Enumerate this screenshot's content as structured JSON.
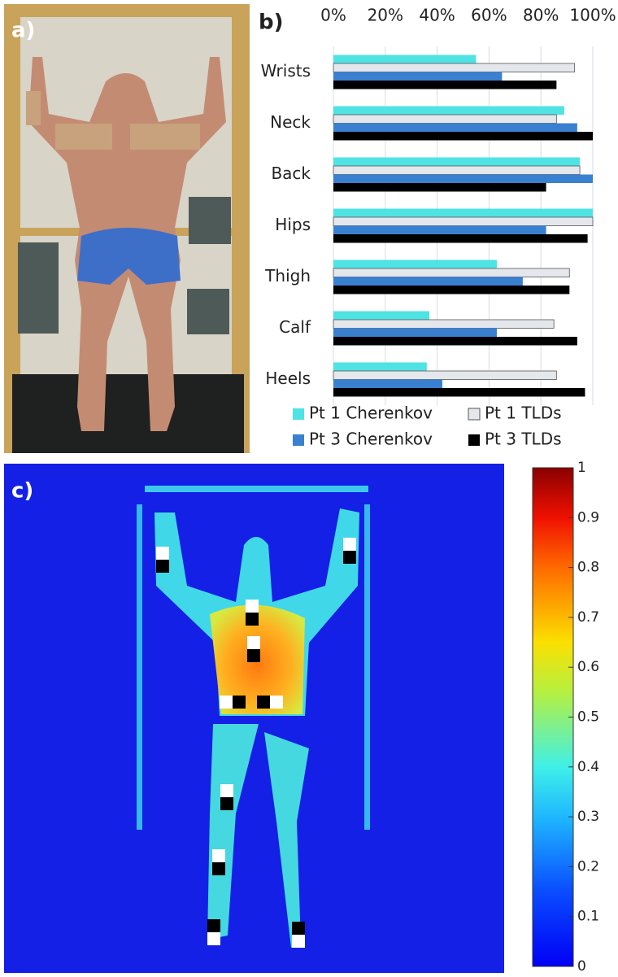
{
  "panel_labels": [
    "a)",
    "b)",
    "c)"
  ],
  "chart_data": [
    {
      "type": "hbar",
      "categories": [
        "Wrists",
        "Neck",
        "Back",
        "Hips",
        "Thigh",
        "Calf",
        "Heels"
      ],
      "series": [
        {
          "name": "Pt 1 Cherenkov",
          "color": "#4fe3e3",
          "values": [
            55,
            89,
            95,
            100,
            63,
            37,
            36
          ]
        },
        {
          "name": "Pt 1 TLDs",
          "color": "#e4e7eb",
          "values": [
            93,
            86,
            95,
            100,
            91,
            85,
            86
          ]
        },
        {
          "name": "Pt 3 Cherenkov",
          "color": "#3a80d0",
          "values": [
            65,
            94,
            100,
            82,
            73,
            63,
            42
          ]
        },
        {
          "name": "Pt 3 TLDs",
          "color": "#000000",
          "values": [
            86,
            100,
            82,
            98,
            91,
            94,
            97
          ]
        }
      ],
      "xlim": [
        0,
        100
      ],
      "xticks": [
        {
          "value": 0,
          "label": "0%"
        },
        {
          "value": 20,
          "label": "20%"
        },
        {
          "value": 40,
          "label": "40%"
        },
        {
          "value": 60,
          "label": "60%"
        },
        {
          "value": 80,
          "label": "80%"
        },
        {
          "value": 100,
          "label": "100%"
        }
      ],
      "grid": true
    },
    {
      "type": "colorbar",
      "ylim": [
        0,
        1
      ],
      "yticks": [
        0,
        0.1,
        0.2,
        0.3,
        0.4,
        0.5,
        0.6,
        0.7,
        0.8,
        0.9,
        1
      ]
    }
  ]
}
